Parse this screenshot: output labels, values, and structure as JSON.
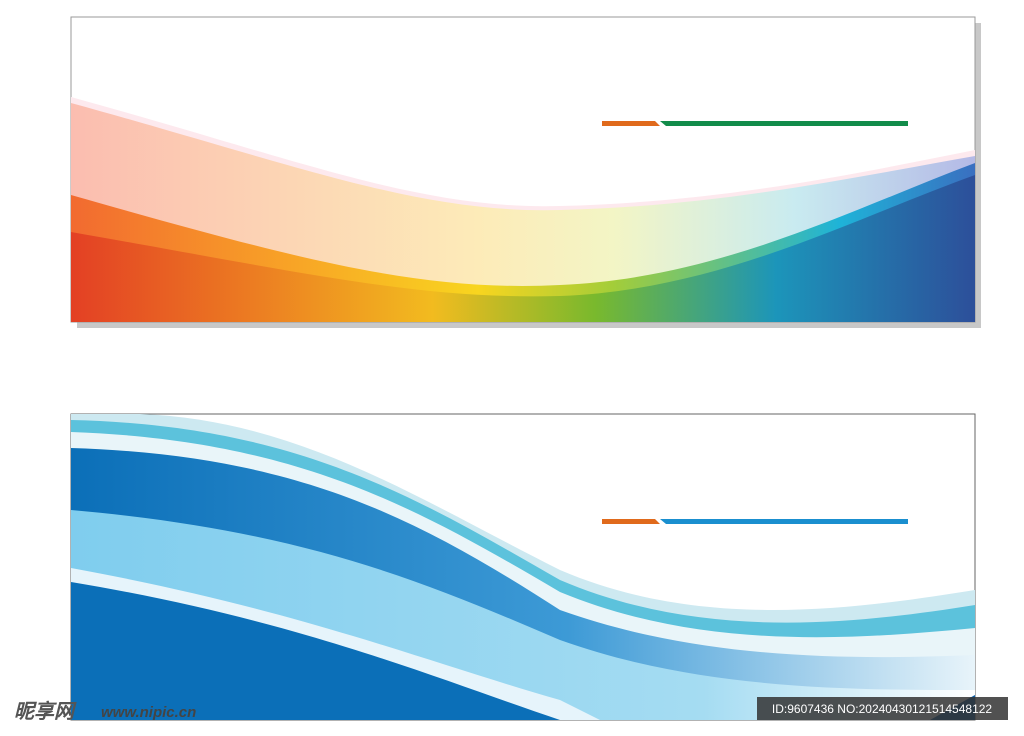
{
  "watermark": {
    "logo": "昵享网",
    "site": "www.nipic.cn",
    "id": "ID:9607436 NO:20240430121514548122"
  }
}
